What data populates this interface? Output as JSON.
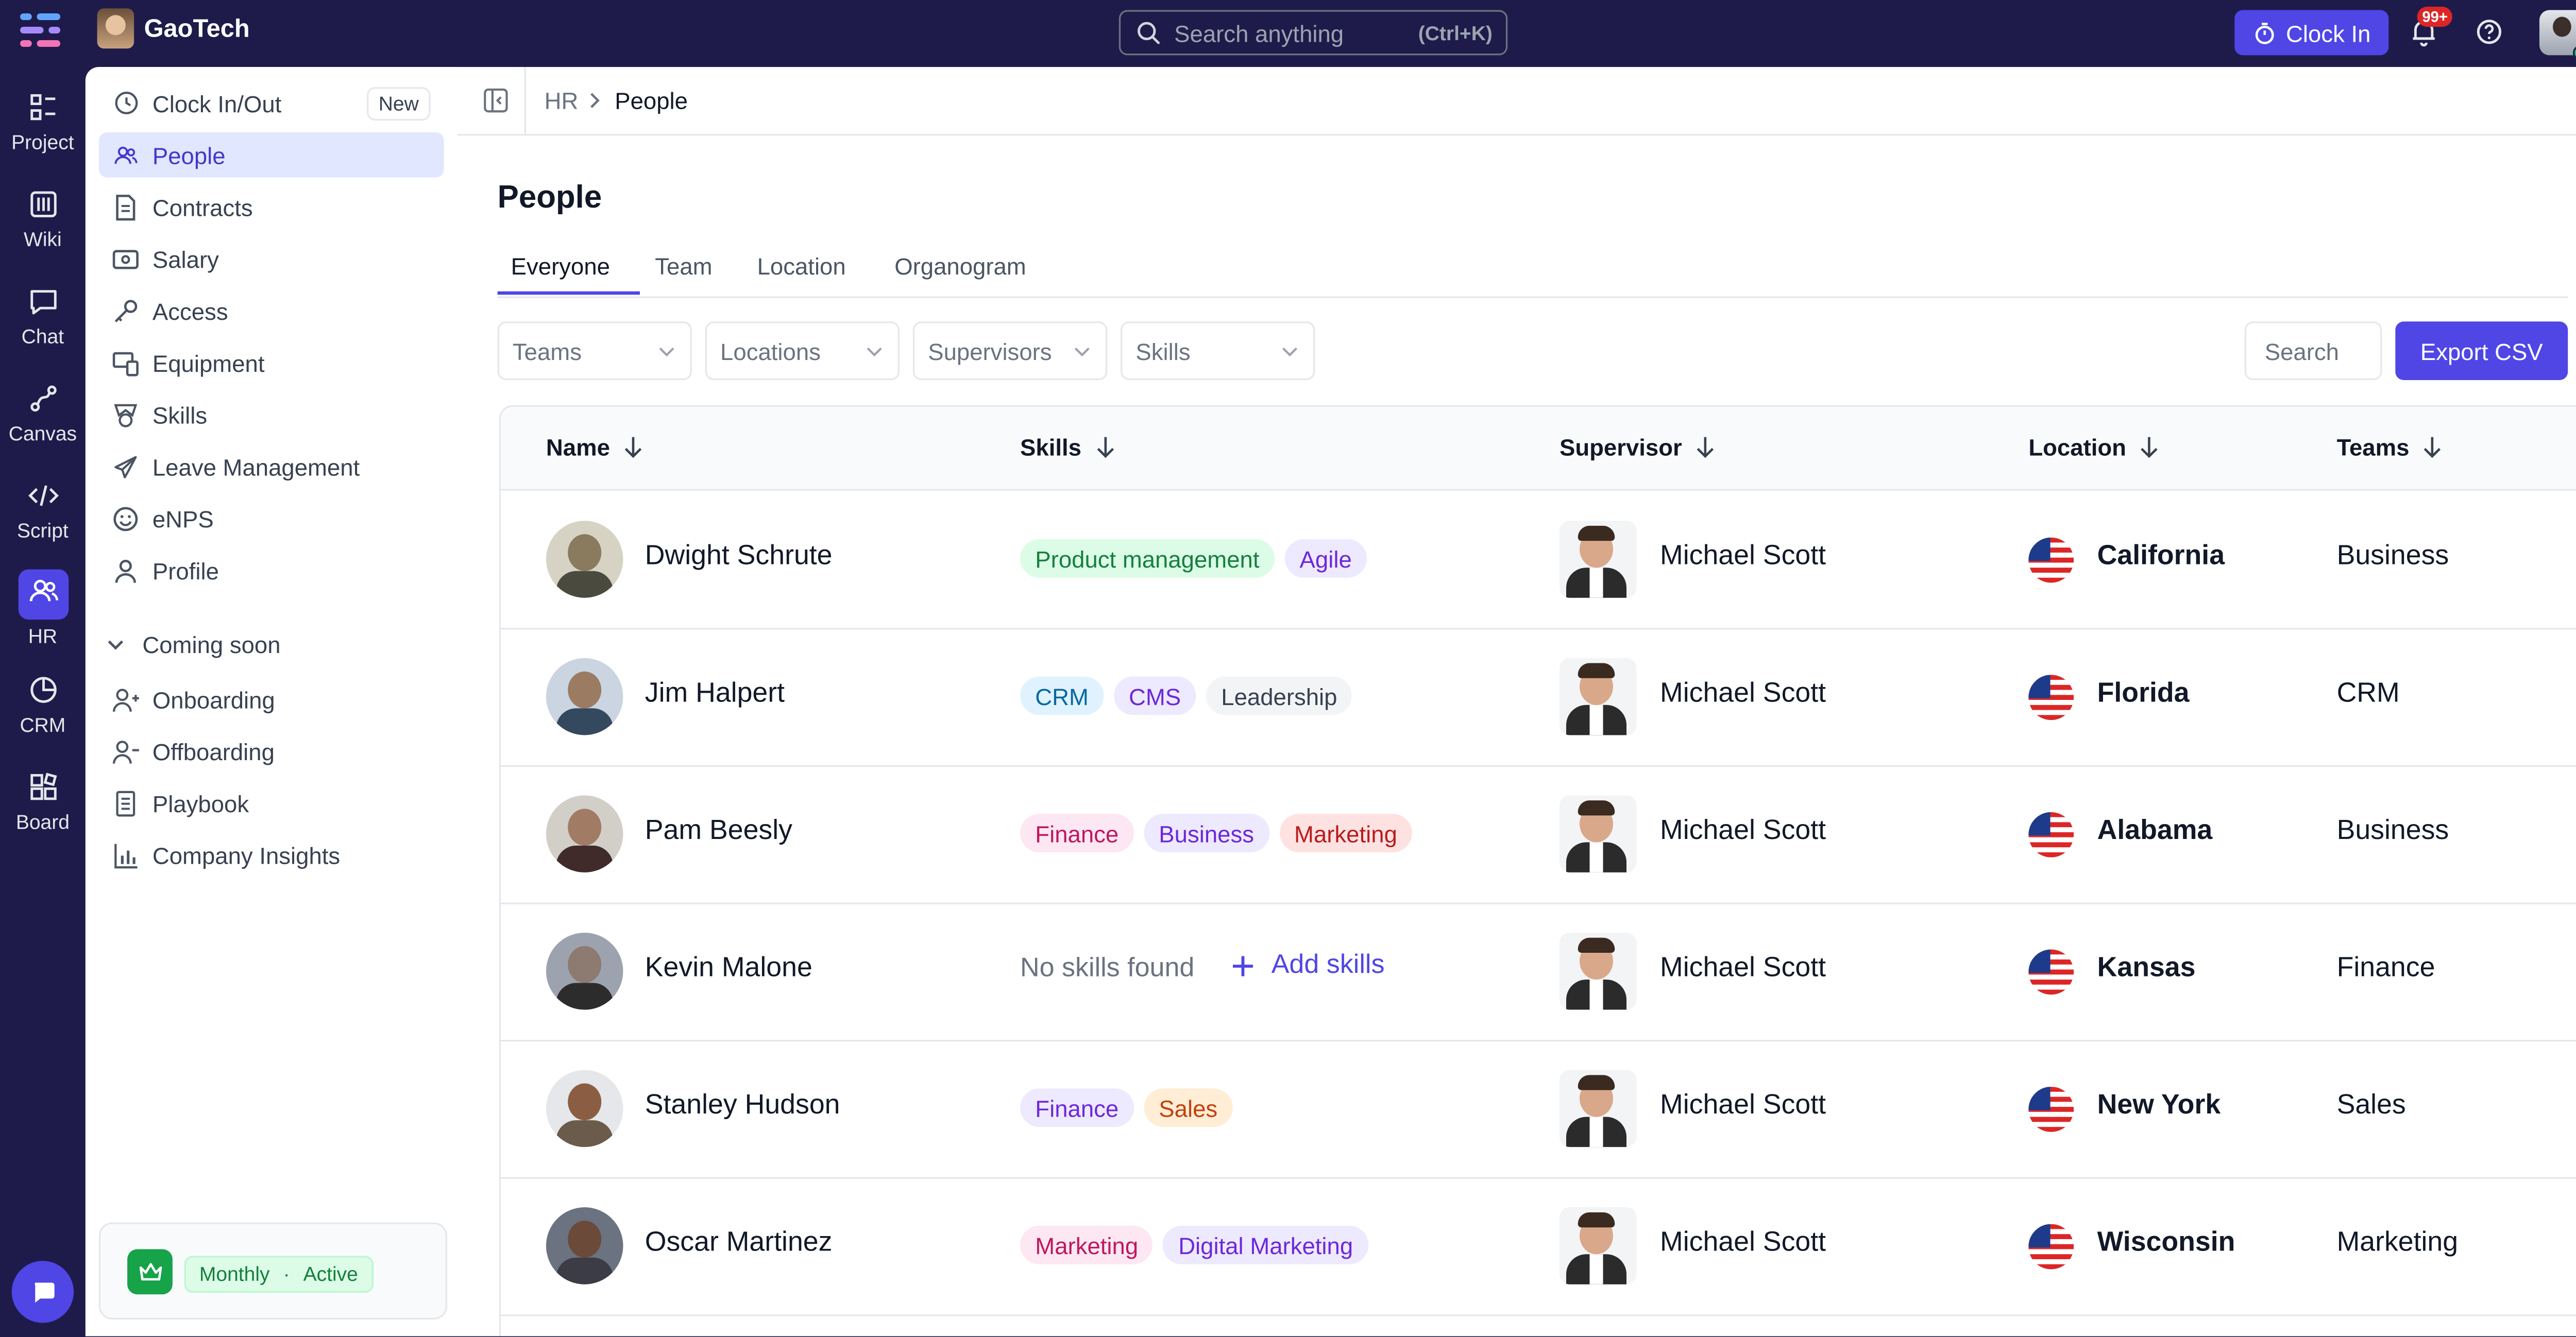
{
  "app": {
    "brand": "GaoTech",
    "search_placeholder": "Search anything",
    "search_shortcut": "(Ctrl+K)",
    "clock_in_label": "Clock In",
    "notification_count": "99+",
    "accent_color": "#4f46e5"
  },
  "rail": [
    {
      "label": "Project",
      "icon": "project-icon"
    },
    {
      "label": "Wiki",
      "icon": "wiki-icon"
    },
    {
      "label": "Chat",
      "icon": "chat-icon"
    },
    {
      "label": "Canvas",
      "icon": "canvas-icon"
    },
    {
      "label": "Script",
      "icon": "code-icon"
    },
    {
      "label": "HR",
      "icon": "users-icon",
      "active": true
    },
    {
      "label": "CRM",
      "icon": "pie-chart-icon"
    },
    {
      "label": "Board",
      "icon": "board-icon"
    }
  ],
  "sidebar": {
    "items": [
      {
        "label": "Clock In/Out",
        "icon": "clock-icon",
        "badge": "New"
      },
      {
        "label": "People",
        "icon": "users-icon",
        "active": true
      },
      {
        "label": "Contracts",
        "icon": "document-icon"
      },
      {
        "label": "Salary",
        "icon": "money-icon"
      },
      {
        "label": "Access",
        "icon": "key-icon"
      },
      {
        "label": "Equipment",
        "icon": "devices-icon"
      },
      {
        "label": "Skills",
        "icon": "badge-icon"
      },
      {
        "label": "Leave Management",
        "icon": "plane-icon"
      },
      {
        "label": "eNPS",
        "icon": "smile-icon"
      },
      {
        "label": "Profile",
        "icon": "user-icon"
      }
    ],
    "section_label": "Coming soon",
    "coming_soon": [
      {
        "label": "Onboarding",
        "icon": "user-add-icon"
      },
      {
        "label": "Offboarding",
        "icon": "user-remove-icon"
      },
      {
        "label": "Playbook",
        "icon": "book-icon"
      },
      {
        "label": "Company Insights",
        "icon": "bar-chart-icon"
      }
    ],
    "plan": {
      "period": "Monthly",
      "separator": "·",
      "status": "Active"
    }
  },
  "breadcrumb": {
    "parent": "HR",
    "current": "People"
  },
  "page": {
    "title": "People",
    "tabs": [
      "Everyone",
      "Team",
      "Location",
      "Organogram"
    ],
    "active_tab": "Everyone",
    "filters": [
      "Teams",
      "Locations",
      "Supervisors",
      "Skills"
    ],
    "search_placeholder": "Search",
    "export_label": "Export CSV"
  },
  "table": {
    "columns": [
      "Name",
      "Skills",
      "Supervisor",
      "Location",
      "Teams"
    ],
    "rows": [
      {
        "name": "Dwight Schrute",
        "skills": [
          {
            "label": "Product management",
            "color": "green"
          },
          {
            "label": "Agile",
            "color": "purple"
          }
        ],
        "supervisor": "Michael Scott",
        "location": "California",
        "team": "Business"
      },
      {
        "name": "Jim Halpert",
        "skills": [
          {
            "label": "CRM",
            "color": "blue"
          },
          {
            "label": "CMS",
            "color": "purple"
          },
          {
            "label": "Leadership",
            "color": "gray"
          }
        ],
        "supervisor": "Michael Scott",
        "location": "Florida",
        "team": "CRM"
      },
      {
        "name": "Pam Beesly",
        "skills": [
          {
            "label": "Finance",
            "color": "pink"
          },
          {
            "label": "Business",
            "color": "purple"
          },
          {
            "label": "Marketing",
            "color": "red"
          }
        ],
        "supervisor": "Michael Scott",
        "location": "Alabama",
        "team": "Business"
      },
      {
        "name": "Kevin Malone",
        "skills": [],
        "no_skills_text": "No skills found",
        "add_skills_label": "Add skills",
        "supervisor": "Michael Scott",
        "location": "Kansas",
        "team": "Finance"
      },
      {
        "name": "Stanley Hudson",
        "skills": [
          {
            "label": "Finance",
            "color": "purple"
          },
          {
            "label": "Sales",
            "color": "orange"
          }
        ],
        "supervisor": "Michael Scott",
        "location": "New York",
        "team": "Sales"
      },
      {
        "name": "Oscar Martinez",
        "skills": [
          {
            "label": "Marketing",
            "color": "pink"
          },
          {
            "label": "Digital Marketing",
            "color": "purple"
          }
        ],
        "supervisor": "Michael Scott",
        "location": "Wisconsin",
        "team": "Marketing"
      }
    ]
  }
}
